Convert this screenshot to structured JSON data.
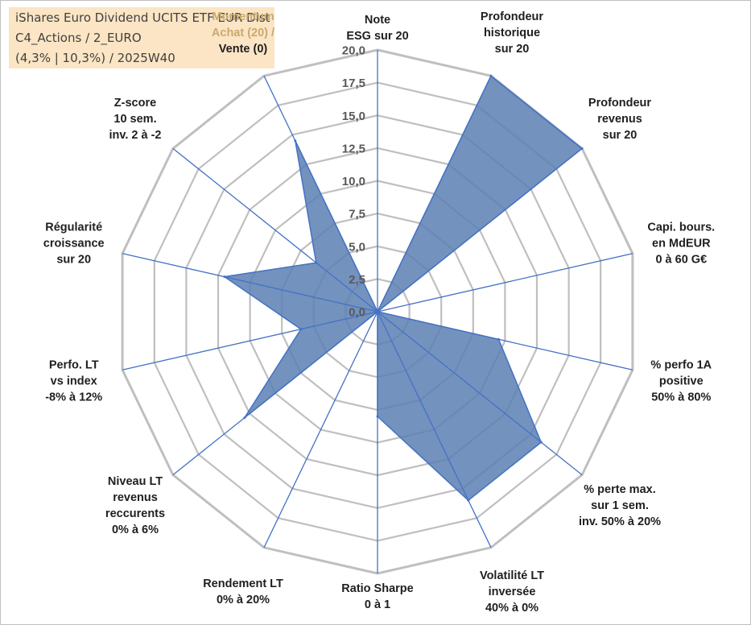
{
  "info": {
    "line1": "iShares Euro Dividend UCITS ETF EUR Dist",
    "line2": "C4_Actions / 2_EURO",
    "line3": "(4,3% | 10,3%) / 2025W40"
  },
  "colors": {
    "fill": "#5b7fb3",
    "stroke": "#4472c4",
    "grid": "#bfbfbf",
    "spoke": "#4472c4",
    "infobox": "#fbe5c4"
  },
  "chart_data": {
    "type": "radar",
    "title": "",
    "rlim": [
      0,
      20
    ],
    "grid": true,
    "ticks": [
      "0,0",
      "2,5",
      "5,0",
      "7,5",
      "10,0",
      "12,5",
      "15,0",
      "17,5",
      "20,0"
    ],
    "axes": [
      {
        "lines": [
          "Note",
          "ESG sur 20"
        ],
        "value": 0
      },
      {
        "lines": [
          "Profondeur",
          "historique",
          "sur 20"
        ],
        "value": 20
      },
      {
        "lines": [
          "Profondeur",
          "revenus",
          "sur 20"
        ],
        "value": 20
      },
      {
        "lines": [
          "Capi. bours.",
          "en MdEUR",
          "0 à 60 G€"
        ],
        "value": 0
      },
      {
        "lines": [
          "% perfo 1A",
          "positive",
          "50% à 80%"
        ],
        "value": 9.5
      },
      {
        "lines": [
          "% perte max.",
          "sur 1 sem.",
          "inv. 50% à 20%"
        ],
        "value": 16
      },
      {
        "lines": [
          "Volatilité LT",
          "inversée",
          "40% à 0%"
        ],
        "value": 16
      },
      {
        "lines": [
          "Ratio Sharpe",
          "0 à 1"
        ],
        "value": 8
      },
      {
        "lines": [
          "Rendement LT",
          "0% à 20%"
        ],
        "value": 0
      },
      {
        "lines": [
          "Niveau LT",
          "revenus",
          "reccurents",
          "0% à 6%"
        ],
        "value": 13
      },
      {
        "lines": [
          "Perfo. LT",
          "vs index",
          "-8% à 12%"
        ],
        "value": 6
      },
      {
        "lines": [
          "Régularité",
          "croissance",
          "sur 20"
        ],
        "value": 12
      },
      {
        "lines": [
          "Z-score",
          "10 sem.",
          "inv. 2 à -2"
        ],
        "value": 6
      },
      {
        "lines": [
          "Momentum",
          "Achat (20) /",
          "Vente (0)"
        ],
        "highlight_lines": 2,
        "value": 14.5
      }
    ]
  }
}
